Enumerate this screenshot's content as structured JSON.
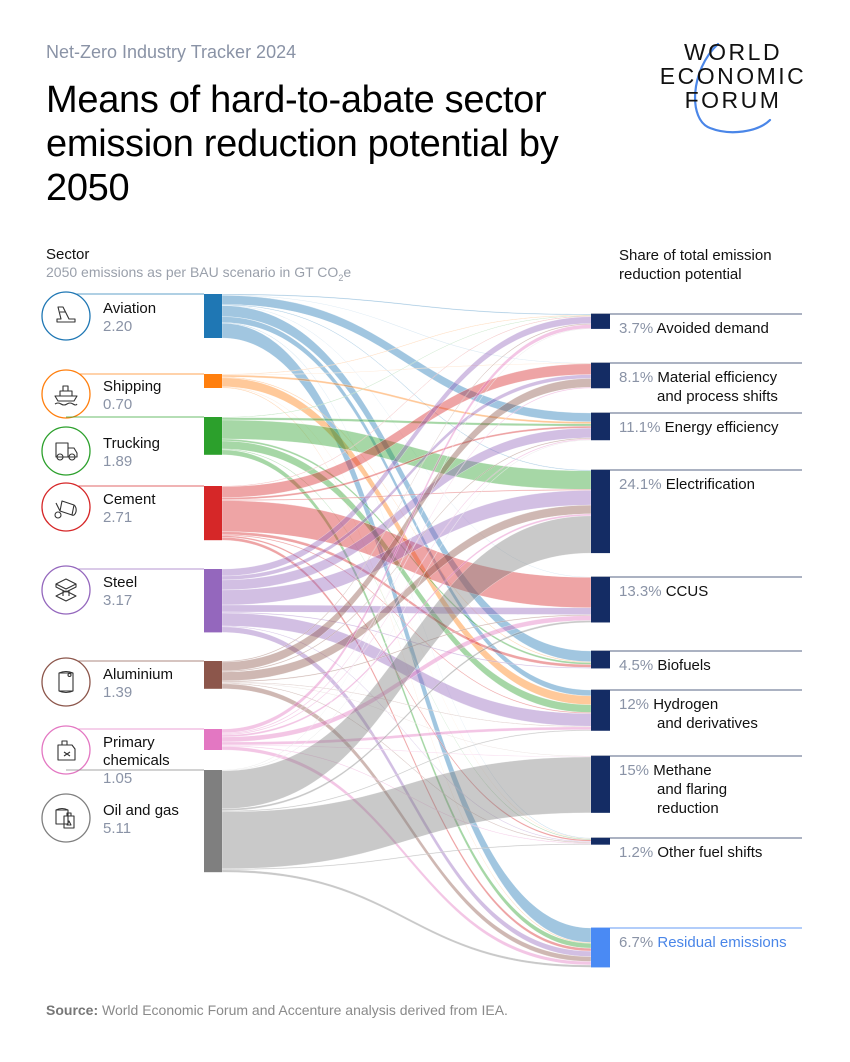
{
  "header": {
    "kicker": "Net-Zero Industry Tracker 2024",
    "title": "Means of hard-to-abate sector emission reduction potential by 2050",
    "logo_text": [
      "WORLD",
      "ECONOMIC",
      "FORUM"
    ]
  },
  "left_header": {
    "title": "Sector",
    "subtitle_pre": "2050 emissions as per BAU scenario in GT CO",
    "subtitle_sub": "2",
    "subtitle_post": "e"
  },
  "right_header": {
    "title": "Share of total emission reduction potential"
  },
  "source": {
    "label": "Source:",
    "text": " World Economic Forum and Accenture analysis derived from IEA."
  },
  "chart_data": {
    "type": "sankey",
    "units": "GT CO2e",
    "sources": [
      {
        "name": "Aviation",
        "value": "2.20",
        "color": "#1f77b4",
        "icon": "airplane-tail-icon"
      },
      {
        "name": "Shipping",
        "value": "0.70",
        "color": "#ff7f0e",
        "icon": "ship-icon"
      },
      {
        "name": "Trucking",
        "value": "1.89",
        "color": "#2ca02c",
        "icon": "truck-icon"
      },
      {
        "name": "Cement",
        "value": "2.71",
        "color": "#d62728",
        "icon": "cement-mixer-icon"
      },
      {
        "name": "Steel",
        "value": "3.17",
        "color": "#9467bd",
        "icon": "steel-beam-icon"
      },
      {
        "name": "Aluminium",
        "value": "1.39",
        "color": "#8c564b",
        "icon": "can-icon"
      },
      {
        "name": "Primary chemicals",
        "value": "1.05",
        "color": "#e377c2",
        "icon": "chemical-canister-icon"
      },
      {
        "name": "Oil and gas",
        "value": "5.11",
        "color": "#7f7f7f",
        "icon": "oil-barrel-icon"
      }
    ],
    "targets": [
      {
        "pct": "3.7%",
        "name": "Avoided demand",
        "lines": [
          "Avoided demand"
        ],
        "color": "#142c64"
      },
      {
        "pct": "8.1%",
        "name": "Material efficiency and process shifts",
        "lines": [
          "Material efficiency",
          "and process shifts"
        ],
        "color": "#142c64"
      },
      {
        "pct": "11.1%",
        "name": "Energy efficiency",
        "lines": [
          "Energy efficiency"
        ],
        "color": "#142c64"
      },
      {
        "pct": "24.1%",
        "name": "Electrification",
        "lines": [
          "Electrification"
        ],
        "color": "#142c64"
      },
      {
        "pct": "13.3%",
        "name": "CCUS",
        "lines": [
          "CCUS"
        ],
        "color": "#142c64"
      },
      {
        "pct": "4.5%",
        "name": "Biofuels",
        "lines": [
          "Biofuels"
        ],
        "color": "#142c64"
      },
      {
        "pct": "12%",
        "name": "Hydrogen and derivatives",
        "lines": [
          "Hydrogen",
          "and derivatives"
        ],
        "color": "#142c64"
      },
      {
        "pct": "15%",
        "name": "Methane and flaring reduction",
        "lines": [
          "Methane",
          "and flaring",
          "reduction"
        ],
        "color": "#142c64"
      },
      {
        "pct": "1.2%",
        "name": "Other fuel shifts",
        "lines": [
          "Other fuel shifts"
        ],
        "color": "#142c64"
      },
      {
        "pct": "6.7%",
        "name": "Residual emissions",
        "lines": [
          "Residual emissions"
        ],
        "color": "#4a8af4"
      }
    ],
    "flows": [
      [
        "Aviation",
        "Avoided demand",
        0.05
      ],
      [
        "Aviation",
        "Material efficiency and process shifts",
        0.02
      ],
      [
        "Aviation",
        "Energy efficiency",
        0.45
      ],
      [
        "Aviation",
        "Electrification",
        0.04
      ],
      [
        "Aviation",
        "CCUS",
        0.02
      ],
      [
        "Aviation",
        "Biofuels",
        0.55
      ],
      [
        "Aviation",
        "Hydrogen and derivatives",
        0.3
      ],
      [
        "Aviation",
        "Other fuel shifts",
        0.03
      ],
      [
        "Aviation",
        "Residual emissions",
        0.74
      ],
      [
        "Shipping",
        "Avoided demand",
        0.03
      ],
      [
        "Shipping",
        "Material efficiency and process shifts",
        0.02
      ],
      [
        "Shipping",
        "Energy efficiency",
        0.1
      ],
      [
        "Shipping",
        "Biofuels",
        0.04
      ],
      [
        "Shipping",
        "Hydrogen and derivatives",
        0.45
      ],
      [
        "Shipping",
        "Other fuel shifts",
        0.02
      ],
      [
        "Shipping",
        "Residual emissions",
        0.04
      ],
      [
        "Trucking",
        "Avoided demand",
        0.03
      ],
      [
        "Trucking",
        "Energy efficiency",
        0.12
      ],
      [
        "Trucking",
        "Electrification",
        0.95
      ],
      [
        "Trucking",
        "Biofuels",
        0.1
      ],
      [
        "Trucking",
        "Hydrogen and derivatives",
        0.4
      ],
      [
        "Trucking",
        "Other fuel shifts",
        0.04
      ],
      [
        "Trucking",
        "Residual emissions",
        0.25
      ],
      [
        "Cement",
        "Avoided demand",
        0.03
      ],
      [
        "Cement",
        "Material efficiency and process shifts",
        0.55
      ],
      [
        "Cement",
        "Energy efficiency",
        0.1
      ],
      [
        "Cement",
        "Electrification",
        0.05
      ],
      [
        "Cement",
        "CCUS",
        1.55
      ],
      [
        "Cement",
        "Biofuels",
        0.15
      ],
      [
        "Cement",
        "Hydrogen and derivatives",
        0.05
      ],
      [
        "Cement",
        "Other fuel shifts",
        0.08
      ],
      [
        "Cement",
        "Residual emissions",
        0.15
      ],
      [
        "Steel",
        "Avoided demand",
        0.35
      ],
      [
        "Steel",
        "Material efficiency and process shifts",
        0.2
      ],
      [
        "Steel",
        "Energy efficiency",
        0.5
      ],
      [
        "Steel",
        "Electrification",
        0.75
      ],
      [
        "Steel",
        "CCUS",
        0.35
      ],
      [
        "Steel",
        "Biofuels",
        0.05
      ],
      [
        "Steel",
        "Hydrogen and derivatives",
        0.65
      ],
      [
        "Steel",
        "Other fuel shifts",
        0.04
      ],
      [
        "Steel",
        "Residual emissions",
        0.28
      ],
      [
        "Aluminium",
        "Avoided demand",
        0.05
      ],
      [
        "Aluminium",
        "Material efficiency and process shifts",
        0.45
      ],
      [
        "Aluminium",
        "Energy efficiency",
        0.05
      ],
      [
        "Aluminium",
        "Electrification",
        0.45
      ],
      [
        "Aluminium",
        "CCUS",
        0.05
      ],
      [
        "Aluminium",
        "Hydrogen and derivatives",
        0.03
      ],
      [
        "Aluminium",
        "Methane and flaring reduction",
        0.02
      ],
      [
        "Aluminium",
        "Other fuel shifts",
        0.04
      ],
      [
        "Aluminium",
        "Residual emissions",
        0.25
      ],
      [
        "Primary chemicals",
        "Avoided demand",
        0.2
      ],
      [
        "Primary chemicals",
        "Material efficiency and process shifts",
        0.05
      ],
      [
        "Primary chemicals",
        "Energy efficiency",
        0.05
      ],
      [
        "Primary chemicals",
        "Electrification",
        0.1
      ],
      [
        "Primary chemicals",
        "CCUS",
        0.25
      ],
      [
        "Primary chemicals",
        "Hydrogen and derivatives",
        0.15
      ],
      [
        "Primary chemicals",
        "Methane and flaring reduction",
        0.03
      ],
      [
        "Primary chemicals",
        "Other fuel shifts",
        0.04
      ],
      [
        "Primary chemicals",
        "Residual emissions",
        0.18
      ],
      [
        "Oil and gas",
        "Avoided demand",
        0.02
      ],
      [
        "Oil and gas",
        "Energy efficiency",
        0.02
      ],
      [
        "Oil and gas",
        "Electrification",
        1.9
      ],
      [
        "Oil and gas",
        "CCUS",
        0.1
      ],
      [
        "Oil and gas",
        "Hydrogen and derivatives",
        0.05
      ],
      [
        "Oil and gas",
        "Methane and flaring reduction",
        2.85
      ],
      [
        "Oil and gas",
        "Other fuel shifts",
        0.05
      ],
      [
        "Oil and gas",
        "Residual emissions",
        0.12
      ]
    ]
  }
}
